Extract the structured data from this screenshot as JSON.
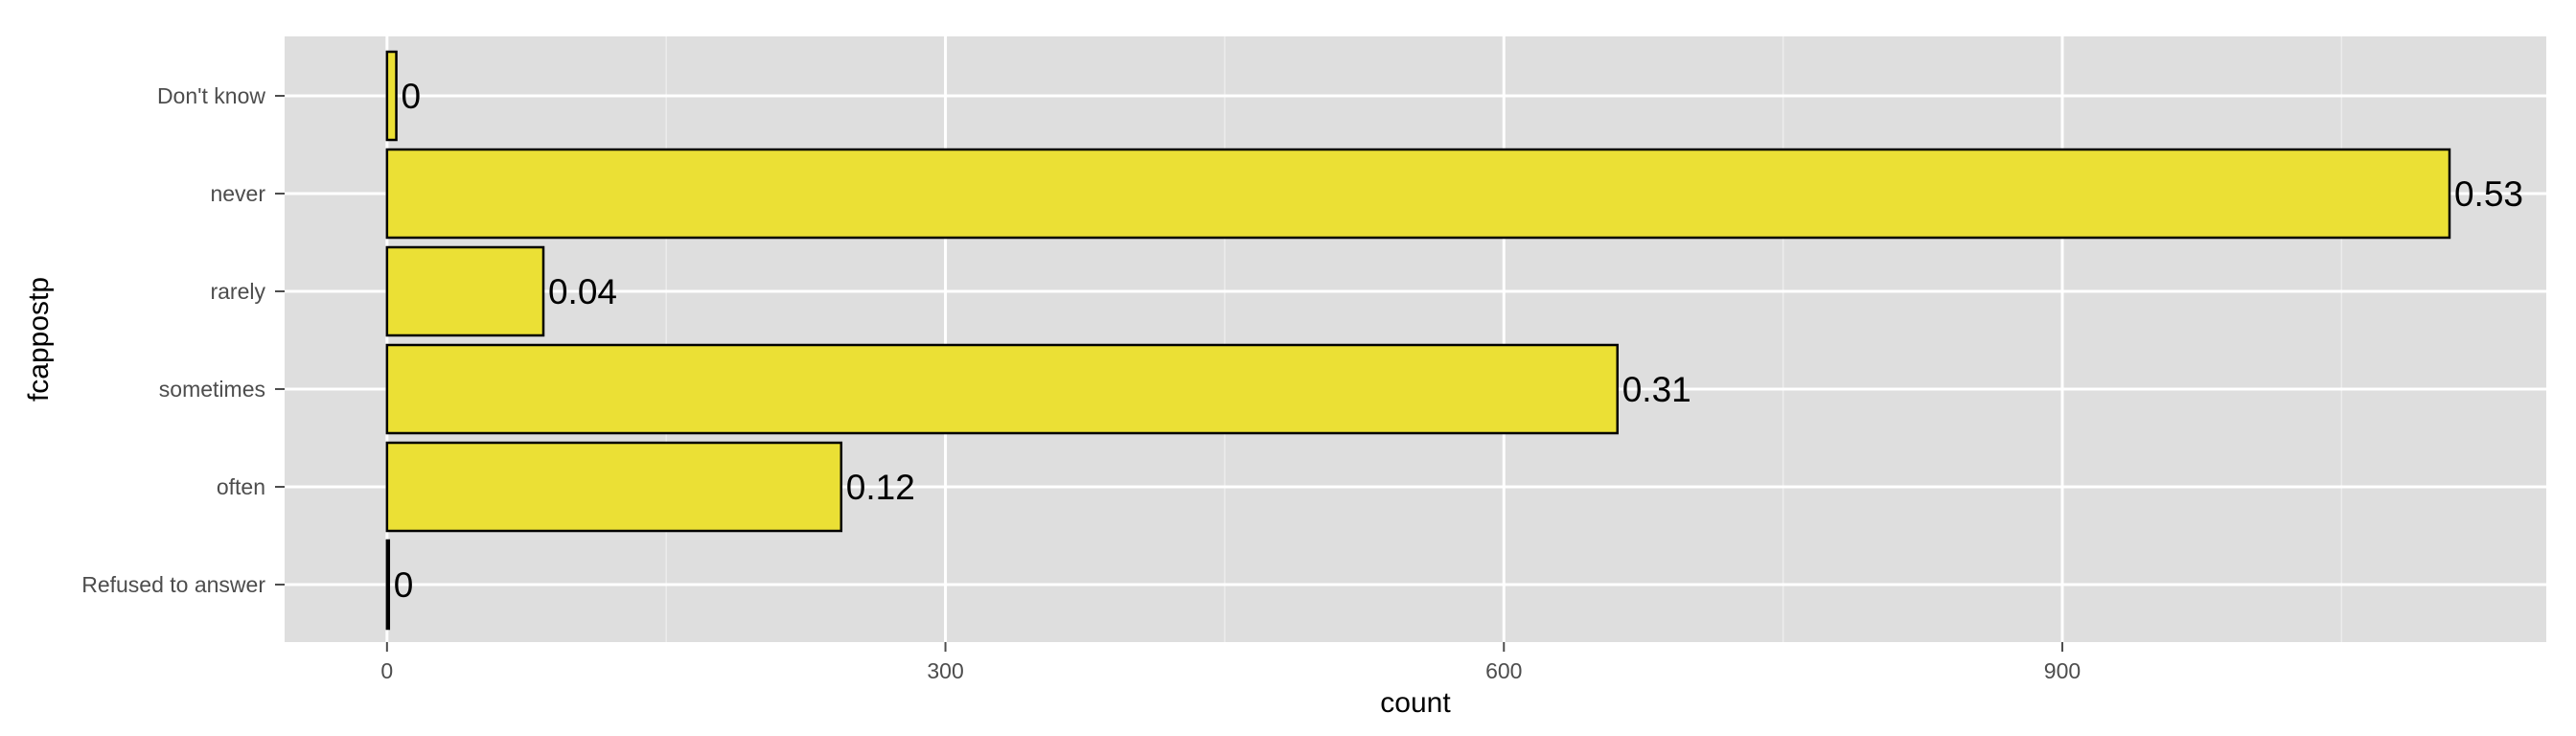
{
  "chart_data": {
    "type": "bar",
    "orientation": "horizontal",
    "title": "",
    "xlabel": "count",
    "ylabel": "fcappostp",
    "categories": [
      "Don't know",
      "never",
      "rarely",
      "sometimes",
      "often",
      "Refused to answer"
    ],
    "values": [
      5,
      1108,
      84,
      661,
      244,
      1
    ],
    "bar_labels": [
      "0",
      "0.53",
      "0.04",
      "0.31",
      "0.12",
      "0"
    ],
    "xlim": [
      -55,
      1160
    ],
    "xticks": [
      0,
      300,
      600,
      900
    ],
    "xtick_labels": [
      "0",
      "300",
      "600",
      "900"
    ],
    "grid": true,
    "legend": "none",
    "colors": {
      "bar_fill": "#ebe035",
      "bar_stroke": "#000000",
      "panel_bg": "#dedede",
      "grid_major": "#ffffff",
      "grid_minor": "#ececec"
    }
  }
}
